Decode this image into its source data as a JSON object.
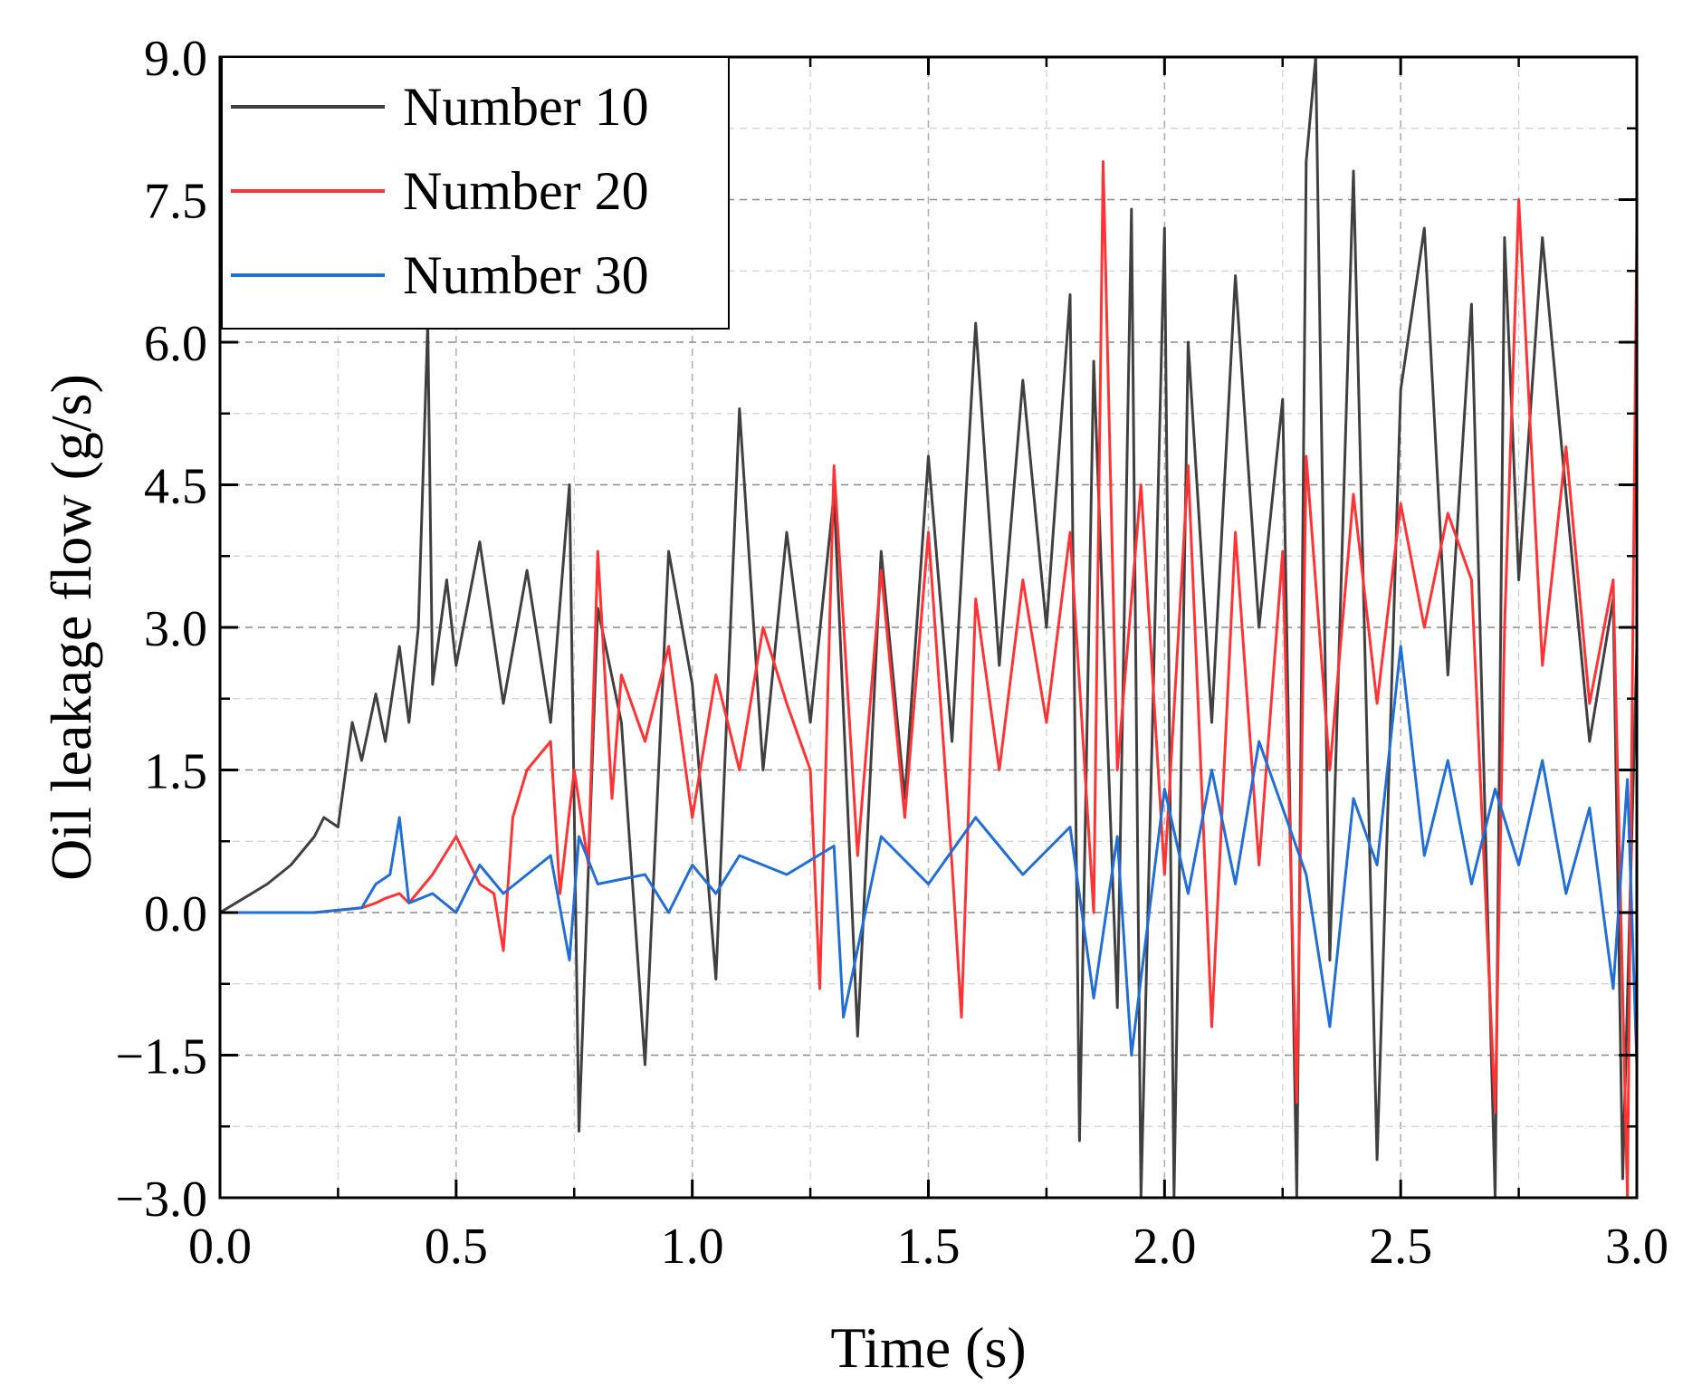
{
  "chart_data": {
    "type": "line",
    "title": "",
    "xlabel": "Time (s)",
    "ylabel": "Oil leakage flow (g/s)",
    "xlim": [
      0,
      3.0
    ],
    "ylim": [
      -3.0,
      9.0
    ],
    "x_ticks": [
      0.0,
      0.5,
      1.0,
      1.5,
      2.0,
      2.5,
      3.0
    ],
    "x_tick_labels": [
      "0.0",
      "0.5",
      "1.0",
      "1.5",
      "2.0",
      "2.5",
      "3.0"
    ],
    "y_ticks": [
      -3.0,
      -1.5,
      0.0,
      1.5,
      3.0,
      4.5,
      6.0,
      7.5,
      9.0
    ],
    "y_tick_labels": [
      "−3.0",
      "−1.5",
      "0.0",
      "1.5",
      "3.0",
      "4.5",
      "6.0",
      "7.5",
      "9.0"
    ],
    "grid": true,
    "legend_position": "top-left",
    "series": [
      {
        "name": "Number 10",
        "color": "#404040",
        "x": [
          0,
          0.05,
          0.1,
          0.15,
          0.2,
          0.22,
          0.25,
          0.28,
          0.3,
          0.33,
          0.35,
          0.38,
          0.4,
          0.42,
          0.44,
          0.45,
          0.48,
          0.5,
          0.55,
          0.6,
          0.65,
          0.7,
          0.74,
          0.76,
          0.8,
          0.85,
          0.9,
          0.95,
          1.0,
          1.05,
          1.1,
          1.15,
          1.2,
          1.25,
          1.3,
          1.35,
          1.4,
          1.45,
          1.5,
          1.55,
          1.6,
          1.65,
          1.7,
          1.75,
          1.8,
          1.82,
          1.85,
          1.9,
          1.93,
          1.95,
          2.0,
          2.02,
          2.05,
          2.1,
          2.15,
          2.2,
          2.25,
          2.28,
          2.3,
          2.32,
          2.35,
          2.4,
          2.45,
          2.5,
          2.55,
          2.6,
          2.65,
          2.7,
          2.72,
          2.75,
          2.8,
          2.85,
          2.9,
          2.95,
          2.97,
          3.0
        ],
        "values": [
          0,
          0.15,
          0.3,
          0.5,
          0.8,
          1.0,
          0.9,
          2.0,
          1.6,
          2.3,
          1.8,
          2.8,
          2.0,
          3.0,
          6.2,
          2.4,
          3.5,
          2.6,
          3.9,
          2.2,
          3.6,
          2.0,
          4.5,
          -2.3,
          3.2,
          2.0,
          -1.6,
          3.8,
          2.4,
          -0.7,
          5.3,
          1.5,
          4.0,
          2.0,
          4.4,
          -1.3,
          3.8,
          1.2,
          4.8,
          1.8,
          6.2,
          2.6,
          5.6,
          3.0,
          6.5,
          -2.4,
          5.8,
          -1.0,
          7.4,
          -3.0,
          7.2,
          -3.0,
          6.0,
          2.0,
          6.7,
          3.0,
          5.4,
          -3.0,
          7.9,
          9.0,
          -0.5,
          7.8,
          -2.6,
          5.5,
          7.2,
          2.5,
          6.4,
          -3.0,
          7.1,
          3.5,
          7.1,
          4.4,
          1.8,
          3.3,
          -2.8,
          2.8
        ]
      },
      {
        "name": "Number 20",
        "color": "#ff3333",
        "x": [
          0,
          0.2,
          0.3,
          0.33,
          0.35,
          0.38,
          0.4,
          0.45,
          0.5,
          0.55,
          0.58,
          0.6,
          0.62,
          0.65,
          0.7,
          0.72,
          0.75,
          0.78,
          0.8,
          0.83,
          0.85,
          0.9,
          0.95,
          1.0,
          1.05,
          1.1,
          1.15,
          1.2,
          1.25,
          1.27,
          1.3,
          1.35,
          1.4,
          1.45,
          1.5,
          1.55,
          1.57,
          1.6,
          1.65,
          1.7,
          1.75,
          1.8,
          1.85,
          1.87,
          1.9,
          1.95,
          2.0,
          2.05,
          2.1,
          2.15,
          2.2,
          2.25,
          2.28,
          2.3,
          2.35,
          2.4,
          2.45,
          2.5,
          2.55,
          2.6,
          2.65,
          2.7,
          2.72,
          2.75,
          2.8,
          2.85,
          2.9,
          2.95,
          2.98,
          3.0
        ],
        "values": [
          0,
          0,
          0.05,
          0.1,
          0.15,
          0.2,
          0.1,
          0.4,
          0.8,
          0.3,
          0.2,
          -0.4,
          1.0,
          1.5,
          1.8,
          0.2,
          1.5,
          0.5,
          3.8,
          1.2,
          2.5,
          1.8,
          2.8,
          1.0,
          2.5,
          1.5,
          3.0,
          2.2,
          1.5,
          -0.8,
          4.7,
          0.6,
          3.6,
          1.0,
          4.0,
          0.5,
          -1.1,
          3.3,
          1.5,
          3.5,
          2.0,
          4.0,
          0.0,
          7.9,
          1.5,
          4.5,
          0.4,
          4.7,
          -1.2,
          4.0,
          0.5,
          3.8,
          -2.0,
          4.8,
          1.5,
          4.4,
          2.2,
          4.3,
          3.0,
          4.2,
          3.5,
          -2.1,
          3.0,
          7.5,
          2.6,
          4.9,
          2.2,
          3.5,
          -3.0,
          7.2
        ]
      },
      {
        "name": "Number 30",
        "color": "#1f6fd6",
        "x": [
          0,
          0.2,
          0.3,
          0.33,
          0.36,
          0.38,
          0.4,
          0.45,
          0.5,
          0.55,
          0.6,
          0.7,
          0.74,
          0.76,
          0.8,
          0.9,
          0.95,
          1.0,
          1.05,
          1.1,
          1.2,
          1.3,
          1.32,
          1.4,
          1.5,
          1.6,
          1.7,
          1.8,
          1.85,
          1.9,
          1.93,
          2.0,
          2.05,
          2.1,
          2.15,
          2.2,
          2.3,
          2.35,
          2.4,
          2.45,
          2.5,
          2.55,
          2.6,
          2.65,
          2.7,
          2.75,
          2.8,
          2.85,
          2.9,
          2.95,
          2.98,
          3.0
        ],
        "values": [
          0,
          0,
          0.05,
          0.3,
          0.4,
          1.0,
          0.1,
          0.2,
          0.0,
          0.5,
          0.2,
          0.6,
          -0.5,
          0.8,
          0.3,
          0.4,
          0.0,
          0.5,
          0.2,
          0.6,
          0.4,
          0.7,
          -1.1,
          0.8,
          0.3,
          1.0,
          0.4,
          0.9,
          -0.9,
          0.8,
          -1.5,
          1.3,
          0.2,
          1.5,
          0.3,
          1.8,
          0.4,
          -1.2,
          1.2,
          0.5,
          2.8,
          0.6,
          1.6,
          0.3,
          1.3,
          0.5,
          1.6,
          0.2,
          1.1,
          -0.8,
          1.4,
          -1.6
        ]
      }
    ]
  }
}
